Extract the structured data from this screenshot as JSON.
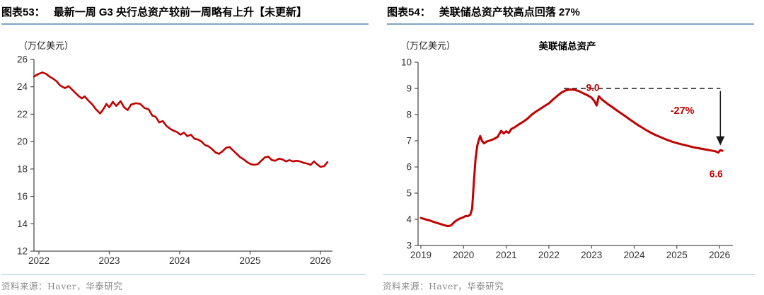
{
  "panels": [
    {
      "fig_label": "图表53：",
      "title": "最新一周 G3 央行总资产较前一周略有上升【未更新】",
      "source": "资料来源：Haver，华泰研究"
    },
    {
      "fig_label": "图表54：",
      "title": "美联储总资产较高点回落 27%",
      "source": "资料来源：Haver，华泰研究"
    }
  ],
  "chart_data": [
    {
      "type": "line",
      "title": "",
      "unit": "（万亿美元）",
      "xlabel": "",
      "ylabel": "",
      "ylim": [
        12,
        26
      ],
      "xlim": [
        2021.93,
        2026.17
      ],
      "yticks": [
        12,
        14,
        16,
        18,
        20,
        22,
        24,
        26
      ],
      "xticks": [
        2022,
        2023,
        2024,
        2025,
        2026
      ],
      "grid": false,
      "legend_position": "none",
      "line_color": "#C00000",
      "series": [
        {
          "name": "G3央行总资产",
          "color": "#C00000",
          "points": [
            [
              2021.93,
              24.75
            ],
            [
              2022.0,
              24.95
            ],
            [
              2022.05,
              25.05
            ],
            [
              2022.1,
              24.95
            ],
            [
              2022.15,
              24.75
            ],
            [
              2022.2,
              24.6
            ],
            [
              2022.25,
              24.4
            ],
            [
              2022.3,
              24.1
            ],
            [
              2022.37,
              23.9
            ],
            [
              2022.42,
              24.05
            ],
            [
              2022.47,
              23.8
            ],
            [
              2022.52,
              23.55
            ],
            [
              2022.57,
              23.3
            ],
            [
              2022.61,
              23.15
            ],
            [
              2022.65,
              23.3
            ],
            [
              2022.7,
              23.0
            ],
            [
              2022.76,
              22.7
            ],
            [
              2022.81,
              22.35
            ],
            [
              2022.87,
              22.05
            ],
            [
              2022.92,
              22.4
            ],
            [
              2022.96,
              22.75
            ],
            [
              2023.0,
              22.5
            ],
            [
              2023.05,
              22.9
            ],
            [
              2023.1,
              22.6
            ],
            [
              2023.16,
              22.95
            ],
            [
              2023.21,
              22.5
            ],
            [
              2023.26,
              22.3
            ],
            [
              2023.31,
              22.7
            ],
            [
              2023.38,
              22.8
            ],
            [
              2023.44,
              22.75
            ],
            [
              2023.5,
              22.45
            ],
            [
              2023.56,
              22.35
            ],
            [
              2023.61,
              21.9
            ],
            [
              2023.66,
              21.8
            ],
            [
              2023.71,
              21.4
            ],
            [
              2023.76,
              21.5
            ],
            [
              2023.81,
              21.15
            ],
            [
              2023.86,
              20.95
            ],
            [
              2023.91,
              20.8
            ],
            [
              2023.96,
              20.7
            ],
            [
              2024.01,
              20.5
            ],
            [
              2024.06,
              20.65
            ],
            [
              2024.11,
              20.4
            ],
            [
              2024.16,
              20.5
            ],
            [
              2024.21,
              20.2
            ],
            [
              2024.26,
              20.15
            ],
            [
              2024.31,
              20.0
            ],
            [
              2024.36,
              19.75
            ],
            [
              2024.41,
              19.65
            ],
            [
              2024.46,
              19.45
            ],
            [
              2024.51,
              19.2
            ],
            [
              2024.56,
              19.1
            ],
            [
              2024.61,
              19.3
            ],
            [
              2024.66,
              19.55
            ],
            [
              2024.71,
              19.6
            ],
            [
              2024.76,
              19.35
            ],
            [
              2024.81,
              19.1
            ],
            [
              2024.86,
              18.85
            ],
            [
              2024.91,
              18.7
            ],
            [
              2024.96,
              18.5
            ],
            [
              2025.01,
              18.35
            ],
            [
              2025.06,
              18.3
            ],
            [
              2025.11,
              18.35
            ],
            [
              2025.16,
              18.6
            ],
            [
              2025.21,
              18.85
            ],
            [
              2025.26,
              18.9
            ],
            [
              2025.31,
              18.65
            ],
            [
              2025.36,
              18.6
            ],
            [
              2025.41,
              18.75
            ],
            [
              2025.46,
              18.7
            ],
            [
              2025.51,
              18.55
            ],
            [
              2025.56,
              18.65
            ],
            [
              2025.61,
              18.55
            ],
            [
              2025.66,
              18.6
            ],
            [
              2025.71,
              18.55
            ],
            [
              2025.76,
              18.45
            ],
            [
              2025.81,
              18.4
            ],
            [
              2025.86,
              18.3
            ],
            [
              2025.91,
              18.55
            ],
            [
              2025.95,
              18.35
            ],
            [
              2026.0,
              18.15
            ],
            [
              2026.05,
              18.2
            ],
            [
              2026.1,
              18.5
            ]
          ]
        }
      ],
      "annotations": []
    },
    {
      "type": "line",
      "title": "美联储总资产",
      "unit": "（万亿美元）",
      "xlabel": "",
      "ylabel": "",
      "ylim": [
        3,
        10
      ],
      "xlim": [
        2018.93,
        2026.3
      ],
      "yticks": [
        3,
        4,
        5,
        6,
        7,
        8,
        9,
        10
      ],
      "xticks": [
        2019,
        2020,
        2021,
        2022,
        2023,
        2024,
        2025,
        2026
      ],
      "grid": false,
      "legend_position": "top-center",
      "line_color": "#C00000",
      "series": [
        {
          "name": "美联储总资产",
          "color": "#C00000",
          "points": [
            [
              2019.0,
              4.05
            ],
            [
              2019.1,
              4.0
            ],
            [
              2019.2,
              3.96
            ],
            [
              2019.3,
              3.9
            ],
            [
              2019.4,
              3.85
            ],
            [
              2019.5,
              3.8
            ],
            [
              2019.62,
              3.74
            ],
            [
              2019.7,
              3.76
            ],
            [
              2019.8,
              3.92
            ],
            [
              2019.9,
              4.02
            ],
            [
              2020.0,
              4.08
            ],
            [
              2020.05,
              4.13
            ],
            [
              2020.1,
              4.12
            ],
            [
              2020.16,
              4.18
            ],
            [
              2020.2,
              4.4
            ],
            [
              2020.24,
              5.4
            ],
            [
              2020.28,
              6.3
            ],
            [
              2020.32,
              6.8
            ],
            [
              2020.36,
              7.05
            ],
            [
              2020.39,
              7.18
            ],
            [
              2020.43,
              7.0
            ],
            [
              2020.48,
              6.9
            ],
            [
              2020.54,
              6.97
            ],
            [
              2020.6,
              7.0
            ],
            [
              2020.7,
              7.06
            ],
            [
              2020.8,
              7.15
            ],
            [
              2020.88,
              7.38
            ],
            [
              2020.94,
              7.28
            ],
            [
              2021.0,
              7.36
            ],
            [
              2021.06,
              7.3
            ],
            [
              2021.12,
              7.45
            ],
            [
              2021.2,
              7.52
            ],
            [
              2021.3,
              7.63
            ],
            [
              2021.4,
              7.73
            ],
            [
              2021.5,
              7.85
            ],
            [
              2021.6,
              8.0
            ],
            [
              2021.7,
              8.12
            ],
            [
              2021.8,
              8.22
            ],
            [
              2021.9,
              8.33
            ],
            [
              2022.0,
              8.43
            ],
            [
              2022.1,
              8.58
            ],
            [
              2022.2,
              8.72
            ],
            [
              2022.3,
              8.85
            ],
            [
              2022.4,
              8.93
            ],
            [
              2022.5,
              8.96
            ],
            [
              2022.6,
              8.95
            ],
            [
              2022.7,
              8.9
            ],
            [
              2022.8,
              8.82
            ],
            [
              2022.9,
              8.74
            ],
            [
              2023.0,
              8.65
            ],
            [
              2023.08,
              8.48
            ],
            [
              2023.12,
              8.35
            ],
            [
              2023.17,
              8.7
            ],
            [
              2023.24,
              8.58
            ],
            [
              2023.32,
              8.48
            ],
            [
              2023.4,
              8.38
            ],
            [
              2023.5,
              8.27
            ],
            [
              2023.6,
              8.15
            ],
            [
              2023.7,
              8.04
            ],
            [
              2023.8,
              7.93
            ],
            [
              2023.9,
              7.81
            ],
            [
              2024.0,
              7.7
            ],
            [
              2024.1,
              7.59
            ],
            [
              2024.2,
              7.49
            ],
            [
              2024.3,
              7.39
            ],
            [
              2024.4,
              7.3
            ],
            [
              2024.5,
              7.22
            ],
            [
              2024.6,
              7.15
            ],
            [
              2024.7,
              7.08
            ],
            [
              2024.8,
              7.02
            ],
            [
              2024.9,
              6.96
            ],
            [
              2025.0,
              6.91
            ],
            [
              2025.1,
              6.87
            ],
            [
              2025.2,
              6.83
            ],
            [
              2025.3,
              6.79
            ],
            [
              2025.4,
              6.75
            ],
            [
              2025.5,
              6.72
            ],
            [
              2025.6,
              6.69
            ],
            [
              2025.7,
              6.66
            ],
            [
              2025.8,
              6.63
            ],
            [
              2025.9,
              6.6
            ],
            [
              2025.97,
              6.55
            ],
            [
              2026.02,
              6.64
            ],
            [
              2026.07,
              6.62
            ]
          ]
        }
      ],
      "annotations": [
        {
          "type": "dashline",
          "name": "peak-level-dashed-line",
          "y": 9.0,
          "x_from": 2022.35,
          "x_to": 2026.02,
          "color": "#1a1a1a"
        },
        {
          "type": "label",
          "name": "peak-value-label",
          "text": "9.0",
          "x": 2023.03,
          "y": 9.0,
          "color": "#C00000",
          "size": 13.5
        },
        {
          "type": "label",
          "name": "drop-percent-label",
          "text": "-27%",
          "x": 2025.13,
          "y": 8.13,
          "color": "#C00000",
          "size": 14.5
        },
        {
          "type": "arrow",
          "name": "drop-arrow",
          "x": 2026.02,
          "y_from": 8.9,
          "y_to": 6.82,
          "color": "#1a1a1a"
        },
        {
          "type": "label",
          "name": "end-value-label",
          "text": "6.6",
          "x": 2025.92,
          "y": 5.7,
          "color": "#C00000",
          "size": 13.5
        }
      ]
    }
  ]
}
